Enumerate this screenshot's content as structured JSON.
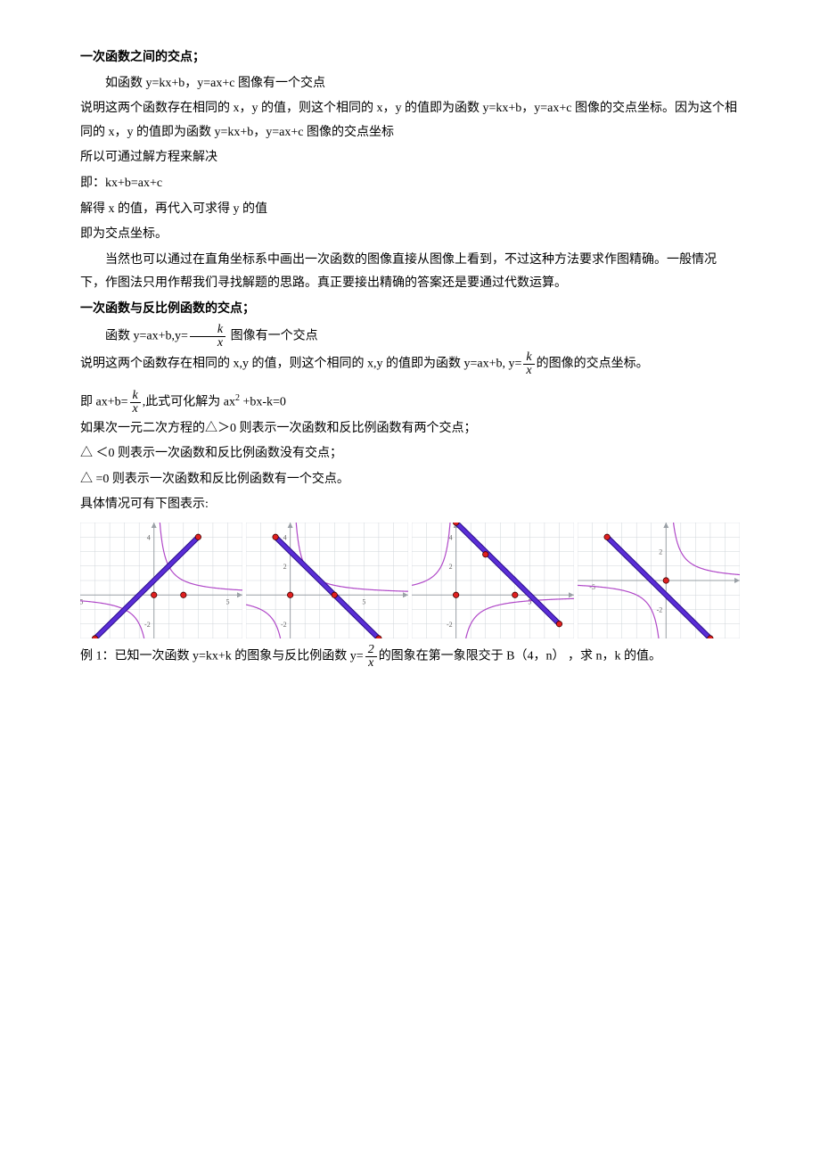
{
  "section1": {
    "heading": "一次函数之间的交点；",
    "p1": "如函数 y=kx+b，y=ax+c 图像有一个交点",
    "p2": "说明这两个函数存在相同的 x，y 的值，则这个相同的 x，y 的值即为函数 y=kx+b，y=ax+c 图像的交点坐标。因为这个相同的 x，y 的值即为函数 y=kx+b，y=ax+c 图像的交点坐标",
    "p3": "所以可通过解方程来解决",
    "p4": "即：kx+b=ax+c",
    "p5": "解得 x 的值，再代入可求得 y 的值",
    "p6": "即为交点坐标。",
    "p7": "当然也可以通过在直角坐标系中画出一次函数的图像直接从图像上看到，不过这种方法要求作图精确。一般情况下，作图法只用作帮我们寻找解题的思路。真正要接出精确的答案还是要通过代数运算。"
  },
  "section2": {
    "heading": "一次函数与反比例函数的交点；",
    "p1a": "函数 y=ax+b,y=",
    "p1b": " 图像有一个交点",
    "p2a": "说明这两个函数存在相同的 x,y 的值，则这个相同的 x,y 的值即为函数 y=ax+b, y=",
    "p2b": "的图像的交点坐标。",
    "p3a": "即 ax+b=",
    "p3b": ",此式可化解为 ax",
    "p3c": " +bx-k=0",
    "p4": "如果次一元二次方程的△＞0 则表示一次函数和反比例函数有两个交点；",
    "p5": "△ ＜0 则表示一次函数和反比例函数没有交点；",
    "p6": "△ =0 则表示一次函数和反比例函数有一个交点。",
    "p7": "具体情况可有下图表示:"
  },
  "frac_kx": {
    "num": "k",
    "den": "x"
  },
  "frac_2x": {
    "num": "2",
    "den": "x"
  },
  "example": {
    "p1a": "例 1：已知一次函数 y=kx+k 的图象与反比例函数 y=",
    "p1b": "的图象在第一象限交于 B（4，n）  ，求 n，k 的值。"
  },
  "charts": {
    "grid_color": "#cfd4da",
    "axis_color": "#9aa0a6",
    "hyperbola_color": "#b048c8",
    "line_color": "#5a2dd6",
    "line_border": "#2a0e8a",
    "point_fill": "#e02020",
    "point_stroke": "#400000",
    "tick_color": "#666",
    "c1": {
      "w": 182,
      "h": 130,
      "x_range": [
        -5,
        6
      ],
      "y_range": [
        -3,
        5
      ],
      "hyperbola_k": 2,
      "line": {
        "x1": -4,
        "y1": -3,
        "x2": 3,
        "y2": 4,
        "from_pt": true
      },
      "points": [
        [
          -4,
          -3
        ],
        [
          3,
          4
        ],
        [
          2,
          0
        ],
        [
          0,
          0
        ]
      ],
      "ticks_x": [
        -5,
        5
      ],
      "ticks_y": [
        -2,
        4
      ]
    },
    "c2": {
      "w": 182,
      "h": 130,
      "x_range": [
        -3,
        8
      ],
      "y_range": [
        -3,
        5
      ],
      "hyperbola_k": 2,
      "line": {
        "x1": -1,
        "y1": 4,
        "x2": 6,
        "y2": -3
      },
      "points": [
        [
          -1,
          4
        ],
        [
          6,
          -3
        ],
        [
          3,
          0
        ],
        [
          0,
          0
        ]
      ],
      "ticks_x": [
        5
      ],
      "ticks_y": [
        -2,
        2,
        4
      ]
    },
    "c3": {
      "w": 182,
      "h": 130,
      "x_range": [
        -3,
        8
      ],
      "y_range": [
        -3,
        5
      ],
      "hyperbola_k": -2,
      "line": {
        "x1": 0,
        "y1": 5,
        "x2": 7,
        "y2": -2
      },
      "points": [
        [
          0,
          5
        ],
        [
          7,
          -2
        ],
        [
          4,
          0
        ],
        [
          0,
          0
        ],
        [
          2,
          2.8
        ]
      ],
      "ticks_x": [
        5
      ],
      "ticks_y": [
        -2,
        2,
        4
      ]
    },
    "c4": {
      "w": 182,
      "h": 130,
      "x_range": [
        -6,
        5
      ],
      "y_range": [
        -4,
        4
      ],
      "hyperbola_k": 2,
      "line": {
        "x1": -4,
        "y1": 3,
        "x2": 3,
        "y2": -4
      },
      "points": [
        [
          -4,
          3
        ],
        [
          3,
          -4
        ],
        [
          0,
          0
        ]
      ],
      "ticks_x": [
        -5
      ],
      "ticks_y": [
        -2,
        2
      ]
    }
  }
}
